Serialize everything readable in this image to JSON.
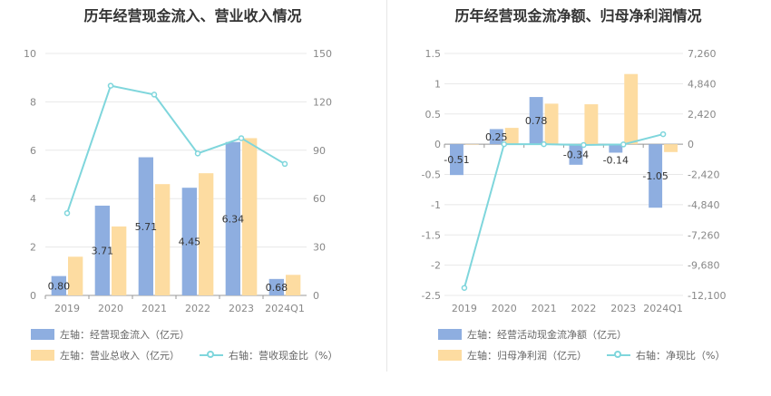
{
  "colors": {
    "bar1": "#8eaee0",
    "bar2": "#fddca1",
    "line": "#7fd6dc",
    "grid": "#e8e8e8"
  },
  "chart_data": [
    {
      "type": "bar",
      "title": "历年经营现金流入、营业收入情况",
      "categories": [
        "2019",
        "2020",
        "2021",
        "2022",
        "2023",
        "2024Q1"
      ],
      "left_axis": {
        "min": 0,
        "max": 10,
        "ticks": [
          "0",
          "2",
          "4",
          "6",
          "8",
          "10"
        ]
      },
      "right_axis": {
        "min": 0,
        "max": 150,
        "ticks": [
          "0",
          "30",
          "60",
          "90",
          "120",
          "150"
        ]
      },
      "series": [
        {
          "name": "左轴：经营现金流入（亿元）",
          "axis": "left",
          "kind": "bar",
          "values": [
            0.8,
            3.71,
            5.71,
            4.45,
            6.34,
            0.68
          ],
          "labels": [
            "0.80",
            "3.71",
            "5.71",
            "4.45",
            "6.34",
            "0.68"
          ]
        },
        {
          "name": "左轴：营业总收入（亿元）",
          "axis": "left",
          "kind": "bar",
          "values": [
            1.6,
            2.85,
            4.6,
            5.05,
            6.5,
            0.85
          ]
        },
        {
          "name": "右轴：营收现金比（%）",
          "axis": "right",
          "kind": "line",
          "values": [
            51,
            130,
            124.5,
            88,
            97.5,
            81.5
          ]
        }
      ]
    },
    {
      "type": "bar",
      "title": "历年经营现金流净额、归母净利润情况",
      "categories": [
        "2019",
        "2020",
        "2021",
        "2022",
        "2023",
        "2024Q1"
      ],
      "left_axis": {
        "min": -2.5,
        "max": 1.5,
        "ticks": [
          "-2.5",
          "-2",
          "-1.5",
          "-1",
          "-0.5",
          "0",
          "0.5",
          "1",
          "1.5"
        ]
      },
      "right_axis": {
        "min": -12100,
        "max": 7260,
        "ticks": [
          "-12,100",
          "-9,680",
          "-7,260",
          "-4,840",
          "-2,420",
          "0",
          "2,420",
          "4,840",
          "7,260"
        ]
      },
      "series": [
        {
          "name": "左轴：经营活动现金流净额（亿元）",
          "axis": "left",
          "kind": "bar",
          "values": [
            -0.51,
            0.25,
            0.78,
            -0.34,
            -0.14,
            -1.05
          ],
          "labels": [
            "-0.51",
            "0.25",
            "0.78",
            "-0.34",
            "-0.14",
            "-1.05"
          ]
        },
        {
          "name": "左轴：归母净利润（亿元）",
          "axis": "left",
          "kind": "bar",
          "values": [
            0.0,
            0.27,
            0.67,
            0.66,
            1.16,
            -0.13
          ]
        },
        {
          "name": "右轴：净现比（%）",
          "axis": "right",
          "kind": "line",
          "values": [
            -11500,
            0,
            0,
            -60,
            -20,
            800
          ]
        }
      ]
    }
  ]
}
